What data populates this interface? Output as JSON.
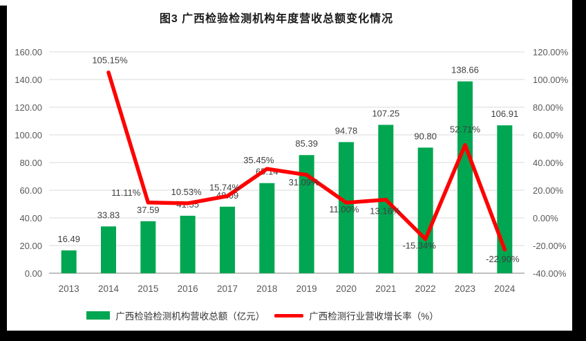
{
  "chart_data": {
    "type": "combo-bar-line",
    "title": "图3 广西检验检测机构年度营收总额变化情况",
    "categories": [
      "2013",
      "2014",
      "2015",
      "2016",
      "2017",
      "2018",
      "2019",
      "2020",
      "2021",
      "2022",
      "2023",
      "2024"
    ],
    "series": [
      {
        "name": "广西检验检测机构营收总额（亿元）",
        "type": "bar",
        "axis": "left",
        "values": [
          16.49,
          33.83,
          37.59,
          41.55,
          48.09,
          65.14,
          85.39,
          94.78,
          107.25,
          90.8,
          138.66,
          106.91
        ]
      },
      {
        "name": "广西检测行业营收增长率（%）",
        "type": "line",
        "axis": "right",
        "values": [
          null,
          105.15,
          11.11,
          10.53,
          15.74,
          35.45,
          31.09,
          11.0,
          13.16,
          -15.34,
          52.71,
          -22.9
        ]
      }
    ],
    "left_axis": {
      "min": 0,
      "max": 160,
      "step": 20,
      "suffix": ""
    },
    "right_axis": {
      "min": -40,
      "max": 120,
      "step": 20,
      "suffix": "%"
    },
    "grid": true,
    "legend_position": "bottom",
    "colors": {
      "bar": "#00A651",
      "line": "#FF0000",
      "grid": "#D9D9D9",
      "axis_line": "#BFBFBF",
      "tick_text": "#595959",
      "data_label": "#404040",
      "title_text": "#1A1A1A"
    }
  }
}
